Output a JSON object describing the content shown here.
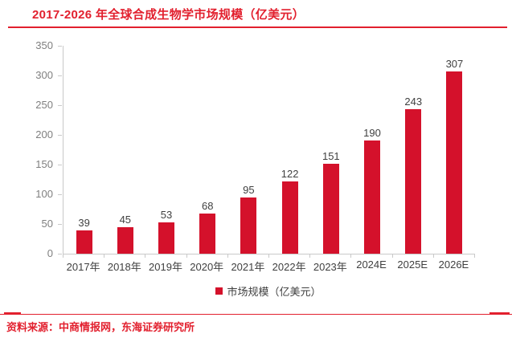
{
  "title": "2017-2026 年全球合成生物学市场规模（亿美元）",
  "source_note": "资料来源：中商情报网，东海证券研究所",
  "legend": {
    "label": "市场规模（亿美元）",
    "swatch_icon": "red-square"
  },
  "colors": {
    "accent_red": "#e2202e",
    "bar_red": "#d4112b",
    "axis_gray": "#c9c9c9",
    "tick_label_gray": "#7f7f7f",
    "text_dark": "#3f3f3f"
  },
  "chart_data": {
    "type": "bar",
    "title": "2017-2026 年全球合成生物学市场规模（亿美元）",
    "categories": [
      "2017年",
      "2018年",
      "2019年",
      "2020年",
      "2021年",
      "2022年",
      "2023年",
      "2024E",
      "2025E",
      "2026E"
    ],
    "values": [
      39,
      45,
      53,
      68,
      95,
      122,
      151,
      190,
      243,
      307
    ],
    "xlabel": "",
    "ylabel": "",
    "ylim": [
      0,
      350
    ],
    "yticks": [
      0,
      50,
      100,
      150,
      200,
      250,
      300,
      350
    ],
    "grid": false,
    "data_labels": true,
    "legend": [
      "市场规模（亿美元）"
    ],
    "legend_position": "bottom",
    "bar_color": "#d4112b"
  }
}
